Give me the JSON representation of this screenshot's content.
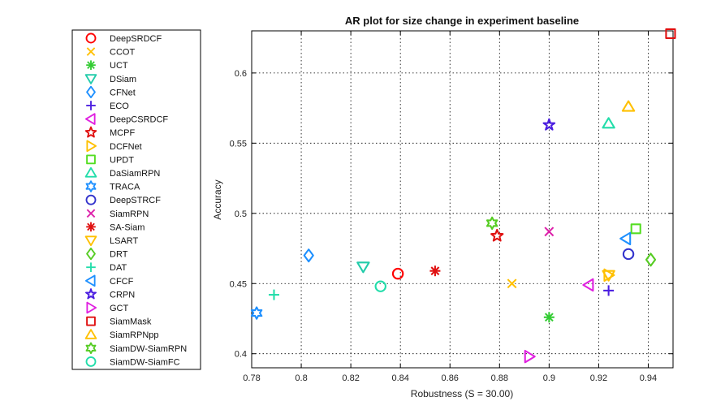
{
  "chart_data": {
    "type": "scatter",
    "title": "AR plot for size change in experiment baseline",
    "xlabel": "Robustness (S = 30.00)",
    "ylabel": "Accuracy",
    "xlim": [
      0.78,
      0.95
    ],
    "ylim": [
      0.39,
      0.63
    ],
    "xticks": [
      0.78,
      0.8,
      0.82,
      0.84,
      0.86,
      0.88,
      0.9,
      0.92,
      0.94
    ],
    "yticks": [
      0.4,
      0.45,
      0.5,
      0.55,
      0.6
    ],
    "xtick_labels": [
      "0.78",
      "0.8",
      "0.82",
      "0.84",
      "0.86",
      "0.88",
      "0.9",
      "0.92",
      "0.94"
    ],
    "ytick_labels": [
      "0.4",
      "0.45",
      "0.5",
      "0.55",
      "0.6"
    ],
    "grid": true,
    "legend_position": "outside-left",
    "series": [
      {
        "name": "DeepSRDCF",
        "marker": "circle",
        "color": "#ff0000",
        "x": 0.839,
        "y": 0.457
      },
      {
        "name": "CCOT",
        "marker": "x",
        "color": "#ffc000",
        "x": 0.885,
        "y": 0.45
      },
      {
        "name": "UCT",
        "marker": "asterisk",
        "color": "#33cc33",
        "x": 0.9,
        "y": 0.426
      },
      {
        "name": "DSiam",
        "marker": "triangle-down",
        "color": "#22ccaa",
        "x": 0.825,
        "y": 0.462
      },
      {
        "name": "CFNet",
        "marker": "diamond",
        "color": "#1e90ff",
        "x": 0.803,
        "y": 0.47
      },
      {
        "name": "ECO",
        "marker": "plus",
        "color": "#4b1ee0",
        "x": 0.924,
        "y": 0.445
      },
      {
        "name": "DeepCSRDCF",
        "marker": "triangle-left",
        "color": "#e020e0",
        "x": 0.916,
        "y": 0.449
      },
      {
        "name": "MCPF",
        "marker": "star",
        "color": "#e01010",
        "x": 0.879,
        "y": 0.484
      },
      {
        "name": "DCFNet",
        "marker": "triangle-right",
        "color": "#ffc000",
        "x": 0.924,
        "y": 0.456
      },
      {
        "name": "UPDT",
        "marker": "square",
        "color": "#55dd22",
        "x": 0.935,
        "y": 0.489
      },
      {
        "name": "DaSiamRPN",
        "marker": "triangle-up",
        "color": "#22ddaa",
        "x": 0.924,
        "y": 0.564
      },
      {
        "name": "TRACA",
        "marker": "hexagram",
        "color": "#1e90ff",
        "x": 0.782,
        "y": 0.429
      },
      {
        "name": "DeepSTRCF",
        "marker": "circle",
        "color": "#3333cc",
        "x": 0.932,
        "y": 0.471
      },
      {
        "name": "SiamRPN",
        "marker": "x",
        "color": "#dd22aa",
        "x": 0.9,
        "y": 0.487
      },
      {
        "name": "SA-Siam",
        "marker": "asterisk",
        "color": "#e01010",
        "x": 0.854,
        "y": 0.459
      },
      {
        "name": "LSART",
        "marker": "triangle-down",
        "color": "#ffc000",
        "x": 0.924,
        "y": 0.456
      },
      {
        "name": "DRT",
        "marker": "diamond",
        "color": "#55cc22",
        "x": 0.941,
        "y": 0.467
      },
      {
        "name": "DAT",
        "marker": "plus",
        "color": "#22ddaa",
        "x": 0.789,
        "y": 0.442
      },
      {
        "name": "CFCF",
        "marker": "triangle-left",
        "color": "#1e90ff",
        "x": 0.931,
        "y": 0.482
      },
      {
        "name": "CRPN",
        "marker": "pentagram",
        "color": "#4b1ee0",
        "x": 0.9,
        "y": 0.563
      },
      {
        "name": "GCT",
        "marker": "triangle-right",
        "color": "#e020e0",
        "x": 0.892,
        "y": 0.398
      },
      {
        "name": "SiamMask",
        "marker": "square",
        "color": "#e01010",
        "x": 0.949,
        "y": 0.628
      },
      {
        "name": "SiamRPNpp",
        "marker": "triangle-up",
        "color": "#ffc000",
        "x": 0.932,
        "y": 0.576
      },
      {
        "name": "SiamDW-SiamRPN",
        "marker": "hexagram",
        "color": "#55cc22",
        "x": 0.877,
        "y": 0.493
      },
      {
        "name": "SiamDW-SiamFC",
        "marker": "circle",
        "color": "#22ddaa",
        "x": 0.832,
        "y": 0.448
      }
    ]
  }
}
